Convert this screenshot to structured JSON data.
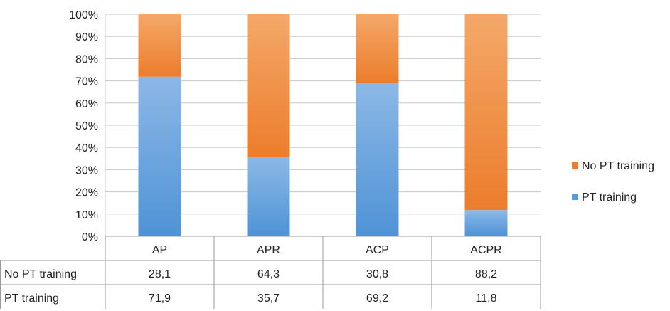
{
  "chart_data": {
    "type": "bar",
    "stacked": true,
    "percent_stacked": true,
    "categories": [
      "AP",
      "APR",
      "ACP",
      "ACPR"
    ],
    "series": [
      {
        "name": "PT training",
        "values": [
          71.9,
          35.7,
          69.2,
          11.8
        ],
        "color": "#5b9bd5"
      },
      {
        "name": "No PT training",
        "values": [
          28.1,
          64.3,
          30.8,
          88.2
        ],
        "color": "#ed7d31"
      }
    ],
    "table_values": {
      "No PT training": [
        "28,1",
        "64,3",
        "30,8",
        "88,2"
      ],
      "PT training": [
        "71,9",
        "35,7",
        "69,2",
        "11,8"
      ]
    },
    "y_ticks": [
      "0%",
      "10%",
      "20%",
      "30%",
      "40%",
      "50%",
      "60%",
      "70%",
      "80%",
      "90%",
      "100%"
    ],
    "ylim": [
      0,
      100
    ],
    "grid": true,
    "legend_position": "right",
    "legend_entries": [
      "No PT training",
      "PT training"
    ],
    "data_table": true
  }
}
